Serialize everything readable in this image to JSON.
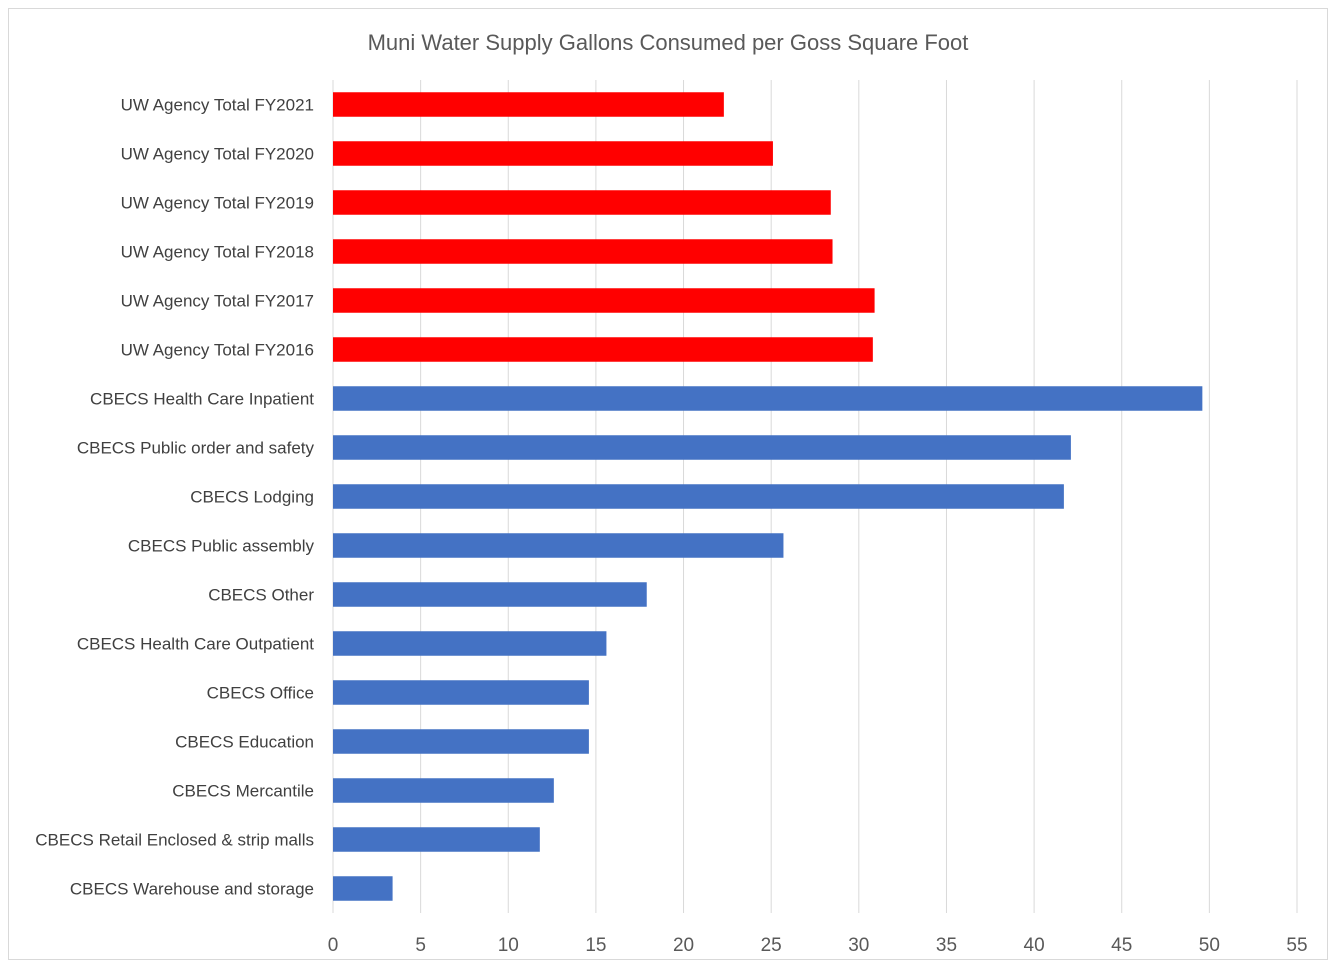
{
  "chart_data": {
    "type": "bar",
    "orientation": "horizontal",
    "title": "Muni Water Supply  Gallons Consumed per Goss Square Foot",
    "xlabel": "",
    "ylabel": "",
    "xlim": [
      0,
      55
    ],
    "xticks": [
      0,
      5,
      10,
      15,
      20,
      25,
      30,
      35,
      40,
      45,
      50,
      55
    ],
    "grid": "vertical",
    "legend": "none",
    "colors": {
      "uw": "#ff0000",
      "cbecs": "#4472c4"
    },
    "categories": [
      "UW Agency Total FY2021",
      "UW Agency Total FY2020",
      "UW Agency Total FY2019",
      "UW Agency Total FY2018",
      "UW Agency Total FY2017",
      "UW Agency Total FY2016",
      "CBECS Health Care Inpatient",
      "CBECS Public order and safety",
      "CBECS Lodging",
      "CBECS Public assembly",
      "CBECS Other",
      "CBECS Health Care Outpatient",
      "CBECS Office",
      "CBECS Education",
      "CBECS Mercantile",
      "CBECS Retail Enclosed & strip malls",
      "CBECS Warehouse and storage"
    ],
    "values": [
      22.3,
      25.1,
      28.4,
      28.5,
      30.9,
      30.8,
      49.6,
      42.1,
      41.7,
      25.7,
      17.9,
      15.6,
      14.6,
      14.6,
      12.6,
      11.8,
      3.4
    ],
    "bar_color_keys": [
      "uw",
      "uw",
      "uw",
      "uw",
      "uw",
      "uw",
      "cbecs",
      "cbecs",
      "cbecs",
      "cbecs",
      "cbecs",
      "cbecs",
      "cbecs",
      "cbecs",
      "cbecs",
      "cbecs",
      "cbecs"
    ]
  }
}
